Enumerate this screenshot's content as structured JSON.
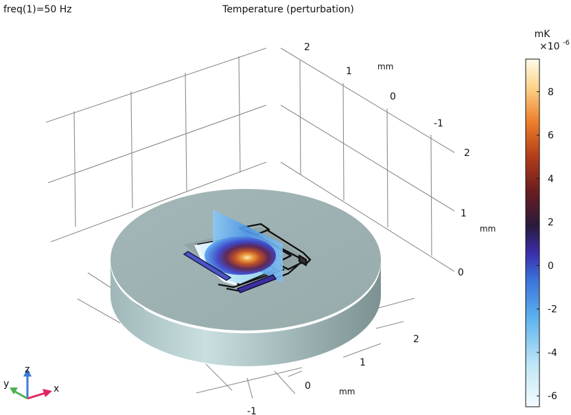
{
  "header": {
    "left_label": "freq(1)=50 Hz",
    "title": "Temperature (perturbation)"
  },
  "axes": {
    "top_right_ticks": [
      "2",
      "1",
      "0",
      "-1"
    ],
    "top_right_unit": "mm",
    "vertical_ticks": [
      "2",
      "1",
      "0"
    ],
    "vertical_unit": "mm",
    "bottom_ticks": [
      "2",
      "1",
      "0",
      "-1"
    ],
    "bottom_unit": "mm"
  },
  "triad": {
    "x": "x",
    "y": "y",
    "z": "z"
  },
  "colorbar": {
    "unit": "mK",
    "multiplier": "×10",
    "exponent": "-6",
    "ticks": [
      "8",
      "6",
      "4",
      "2",
      "0",
      "-2",
      "-4",
      "-6"
    ]
  },
  "chart_data": {
    "type": "heatmap",
    "title": "Temperature (perturbation)",
    "subtitle": "freq(1)=50 Hz",
    "colorbar_label": "mK",
    "colorbar_scale": "×10^-6",
    "colorbar_range": [
      -6.5,
      9.5
    ],
    "colorbar_ticks": [
      -6,
      -4,
      -2,
      0,
      2,
      4,
      6,
      8
    ],
    "colormap": [
      "#f5fbff",
      "#8ed6f2",
      "#3a8fe0",
      "#3a2fb0",
      "#2a1a40",
      "#6a1c1c",
      "#c4461b",
      "#f0922e",
      "#fde9a4",
      "#fffbe8"
    ],
    "axis_ticks": {
      "x": [
        2,
        1,
        0,
        -1
      ],
      "y": [
        2,
        1,
        0,
        -1
      ],
      "z": [
        2,
        1,
        0
      ]
    },
    "axis_unit": "mm",
    "grid": true
  },
  "colors": {
    "disk_top": "#9eb2b3",
    "disk_side_light": "#c4dadb",
    "disk_side_dark": "#7e9293",
    "grid": "#8a8a8a",
    "triad_x": "#e0245e",
    "triad_y": "#4caf50",
    "triad_z": "#3b7bd6"
  }
}
